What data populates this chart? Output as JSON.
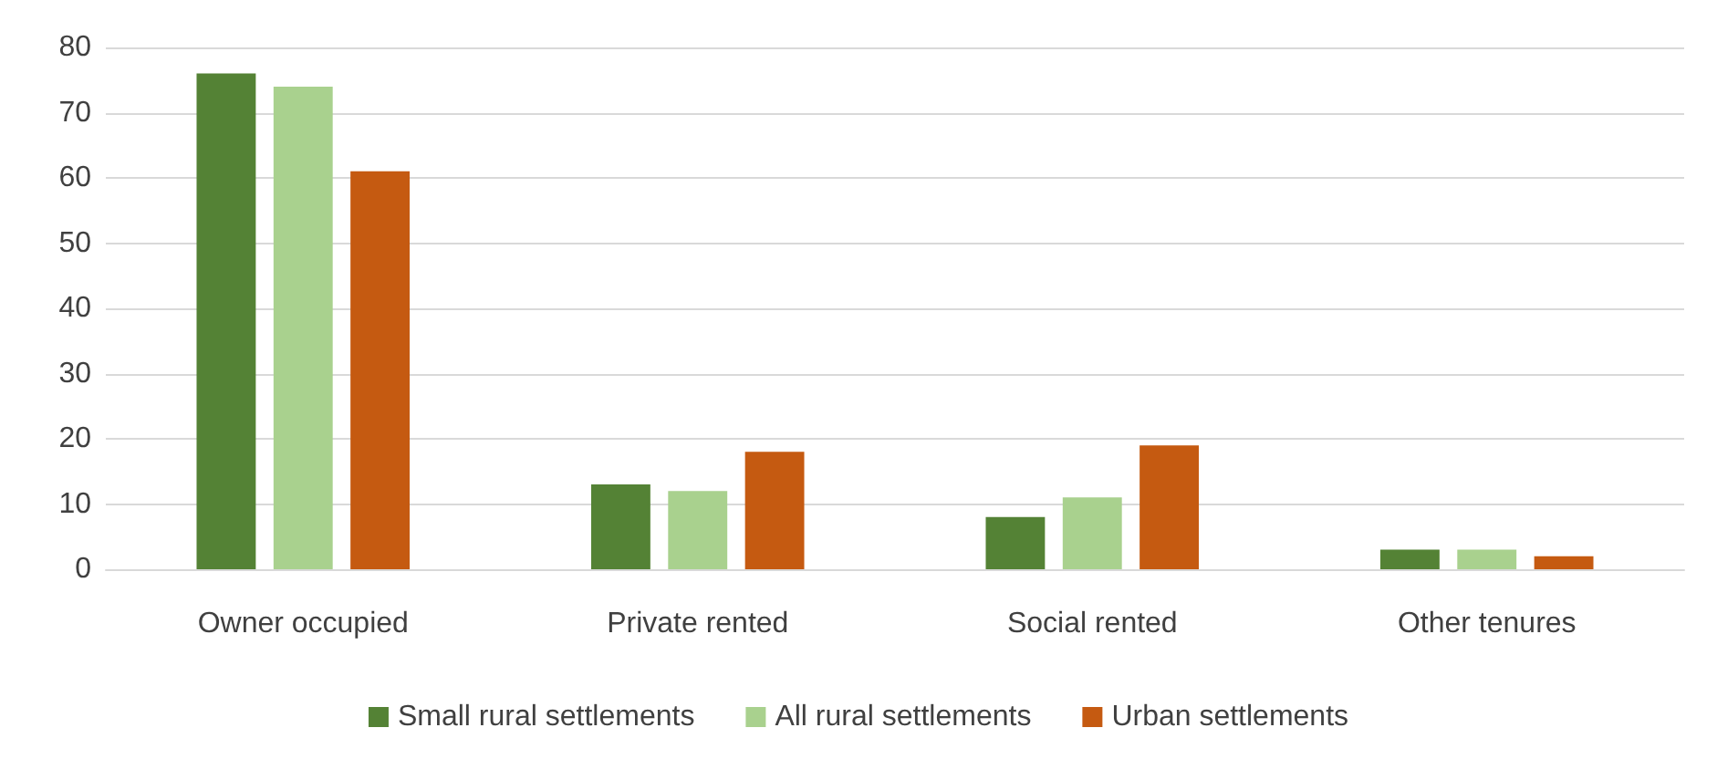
{
  "chart_data": {
    "type": "bar",
    "categories": [
      "Owner occupied",
      "Private rented",
      "Social rented",
      "Other tenures"
    ],
    "series": [
      {
        "name": "Small rural settlements",
        "color": "#548235",
        "values": [
          76,
          13,
          8,
          3
        ]
      },
      {
        "name": "All rural settlements",
        "color": "#a9d18e",
        "values": [
          74,
          12,
          11,
          3
        ]
      },
      {
        "name": "Urban settlements",
        "color": "#c55a11",
        "values": [
          61,
          18,
          19,
          2
        ]
      }
    ],
    "ylim": [
      0,
      80
    ],
    "yticks": [
      0,
      10,
      20,
      30,
      40,
      50,
      60,
      70,
      80
    ],
    "grid": "y",
    "legend": "bottom"
  }
}
